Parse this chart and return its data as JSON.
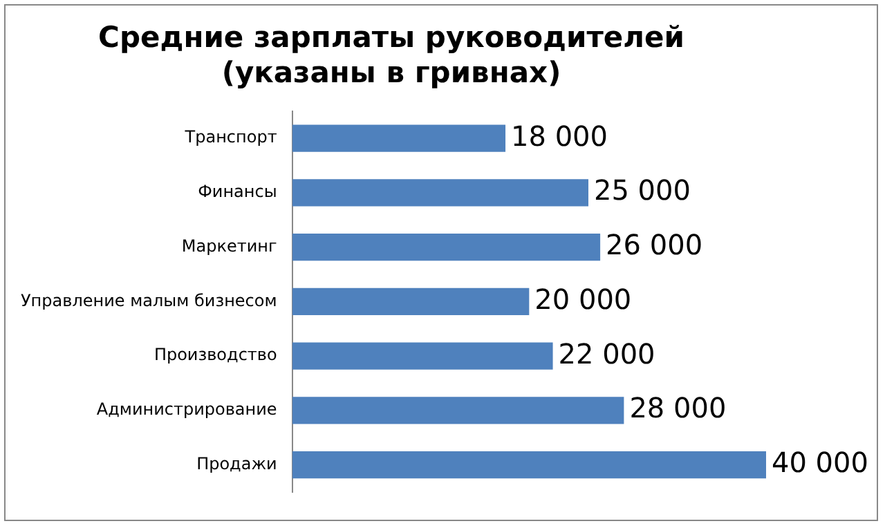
{
  "chart_data": {
    "type": "bar",
    "orientation": "horizontal",
    "title": "Средние зарплаты руководителей\n(указаны в гривнах)",
    "categories": [
      "Транспорт",
      "Финансы",
      "Маркетинг",
      "Управление малым бизнесом",
      "Производство",
      "Администрирование",
      "Продажи"
    ],
    "values": [
      18000,
      25000,
      26000,
      20000,
      22000,
      28000,
      40000
    ],
    "value_labels": [
      "18 000",
      "25 000",
      "26 000",
      "20 000",
      "22 000",
      "28 000",
      "40 000"
    ],
    "color": "#4f81bd",
    "grid": false,
    "legend": false
  }
}
